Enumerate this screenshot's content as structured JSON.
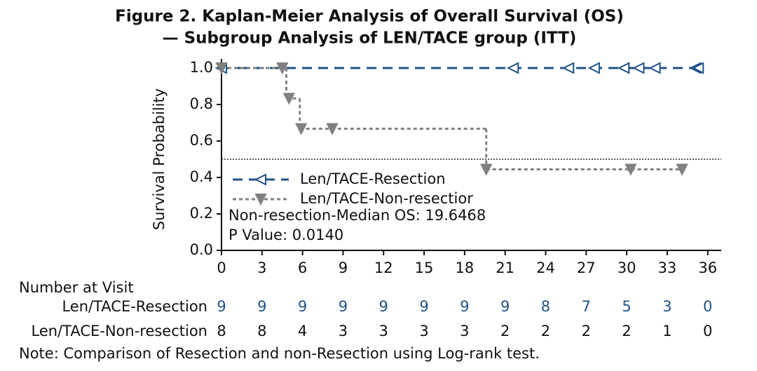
{
  "chart_data": {
    "type": "step",
    "title": [
      "Figure 2. Kaplan-Meier Analysis of Overall Survival (OS)",
      "— Subgroup Analysis of LEN/TACE group (ITT)"
    ],
    "ylabel": "Survival Probability",
    "xlim": [
      0,
      37
    ],
    "ylim": [
      0,
      1.05
    ],
    "xticks": [
      0,
      3,
      6,
      9,
      12,
      15,
      18,
      21,
      24,
      27,
      30,
      33,
      36
    ],
    "yticks": [
      {
        "value": 0,
        "label": "0.0"
      },
      0.2,
      0.4,
      0.6,
      0.8,
      {
        "value": 1,
        "label": "1.0"
      }
    ],
    "reference_line": 0.5,
    "legend": "center-left",
    "series": [
      {
        "name": "Len/TACE-Resection",
        "color": "#1f5288",
        "dash": "14,9",
        "marker": "triangle-left",
        "x": [
          0,
          35.5
        ],
        "values": [
          1.0,
          1.0
        ],
        "marks": {
          "x": [
            0,
            21.6,
            25.7,
            27.6,
            29.8,
            30.9,
            32.1,
            35.1,
            35.3
          ],
          "values": [
            1,
            1,
            1,
            1,
            1,
            1,
            1,
            1,
            1
          ]
        }
      },
      {
        "name": "Len/TACE-Non-resectior",
        "color": "#808080",
        "dash": "5,4",
        "marker": "triangle-down",
        "x": [
          0,
          4.8,
          5.8,
          19.6,
          34.1
        ],
        "values": [
          1.0,
          0.833,
          0.667,
          0.444,
          0.444
        ],
        "marks": {
          "x": [
            0,
            4.5,
            5.0,
            5.9,
            8.2,
            19.6,
            30.3,
            34.1
          ],
          "values": [
            1,
            1,
            0.833,
            0.667,
            0.667,
            0.444,
            0.444,
            0.444
          ]
        }
      }
    ],
    "annotations": [
      "Non-resection-Median OS: 19.6468",
      "P Value: 0.0140"
    ],
    "risk_table": {
      "title": "Number at Visit",
      "rows": [
        {
          "name": "Len/TACE-Resection",
          "color": "#1f5288",
          "counts": [
            9,
            9,
            9,
            9,
            9,
            9,
            9,
            9,
            8,
            7,
            5,
            3,
            0
          ]
        },
        {
          "name": "Len/TACE-Non-resection",
          "color": "#111111",
          "counts": [
            8,
            8,
            4,
            3,
            3,
            3,
            3,
            2,
            2,
            2,
            2,
            1,
            0
          ]
        }
      ]
    },
    "note": "Note: Comparison of Resection and non-Resection using Log-rank test."
  }
}
